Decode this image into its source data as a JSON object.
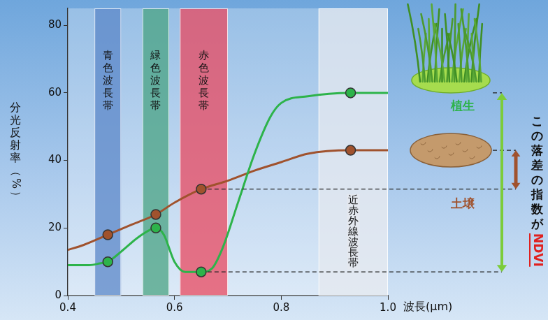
{
  "chart_data": {
    "type": "line",
    "x_label": "波長(μm)",
    "y_label": "分光反射率（%）",
    "xlim": [
      0.4,
      1
    ],
    "xticks": [
      0.4,
      0.6,
      0.8,
      {
        "value": 1,
        "label": "1.0"
      }
    ],
    "ylim": [
      0,
      85
    ],
    "yticks": [
      0,
      20,
      40,
      60,
      80
    ],
    "grid": false,
    "series": [
      {
        "name": "植生",
        "color": "#2db34a",
        "marker": "circle",
        "x": [
          0.4,
          0.44,
          0.46,
          0.475,
          0.5,
          0.53,
          0.555,
          0.565,
          0.58,
          0.6,
          0.62,
          0.65,
          0.67,
          0.69,
          0.72,
          0.75,
          0.78,
          0.8,
          0.85,
          0.93,
          1
        ],
        "values": [
          9,
          9,
          9.5,
          10,
          13,
          17,
          19.5,
          20,
          18,
          10,
          7,
          7,
          8,
          14,
          28,
          42,
          53,
          57,
          59,
          60,
          60
        ]
      },
      {
        "name": "土壌",
        "color": "#a0522d",
        "marker": "circle",
        "x": [
          0.4,
          0.43,
          0.475,
          0.52,
          0.565,
          0.6,
          0.65,
          0.7,
          0.75,
          0.8,
          0.85,
          0.93,
          1
        ],
        "values": [
          13.5,
          15,
          18,
          21,
          24,
          27.5,
          31.5,
          34,
          37,
          39.5,
          42,
          43,
          43
        ]
      }
    ],
    "marked_x": [
      0.475,
      0.565,
      0.65,
      0.93
    ],
    "bands": [
      {
        "label": "青色波長帯",
        "range": [
          0.45,
          0.5
        ],
        "color": "#5b87c8"
      },
      {
        "label": "緑色波長帯",
        "range": [
          0.54,
          0.59
        ],
        "color": "#4aa383"
      },
      {
        "label": "赤色波長帯",
        "range": [
          0.61,
          0.7
        ],
        "color": "#e8485f"
      },
      {
        "label": "近赤外線波長帯",
        "range": [
          0.87,
          1
        ],
        "color": "#e4e8ef"
      }
    ],
    "annotation": {
      "text": "この落差の指数が",
      "highlight": "NDVI"
    }
  }
}
